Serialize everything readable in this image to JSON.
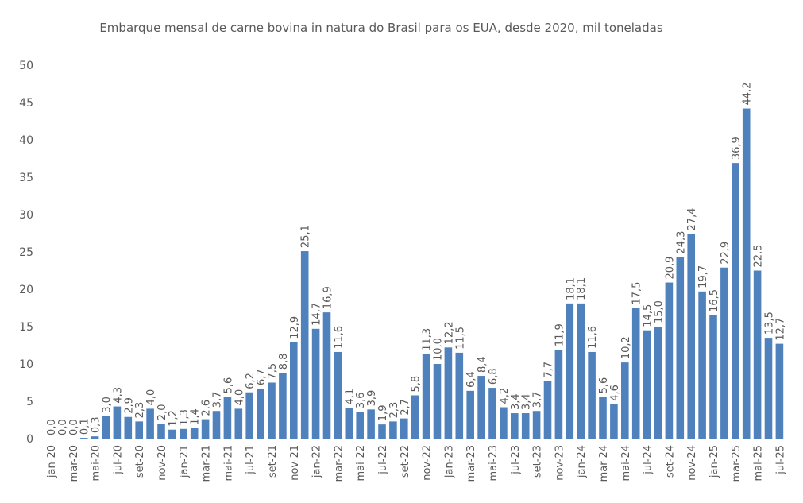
{
  "chart_data": {
    "type": "bar",
    "title": "Embarque mensal de carne bovina in natura do Brasil para os EUA, desde 2020, mil toneladas",
    "xlabel": "",
    "ylabel": "",
    "ylim": [
      0,
      50
    ],
    "y_ticks": [
      0,
      5,
      10,
      15,
      20,
      25,
      30,
      35,
      40,
      45,
      50
    ],
    "x_tick_labels": [
      "jan-20",
      "mar-20",
      "mai-20",
      "jul-20",
      "set-20",
      "nov-20",
      "jan-21",
      "mar-21",
      "mai-21",
      "jul-21",
      "set-21",
      "nov-21",
      "jan-22",
      "mar-22",
      "mai-22",
      "jul-22",
      "set-22",
      "nov-22",
      "jan-23",
      "mar-23",
      "mai-23",
      "jul-23",
      "set-23",
      "nov-23",
      "jan-24",
      "mar-24",
      "mai-24",
      "jul-24",
      "set-24",
      "nov-24",
      "jan-25",
      "mar-25",
      "mai-25",
      "jul-25"
    ],
    "x_range": [
      "jan-20",
      "jul-25"
    ],
    "frequency": "monthly",
    "values": [
      0.0,
      0.0,
      0.0,
      0.1,
      0.3,
      3.0,
      4.3,
      2.9,
      2.3,
      4.0,
      2.0,
      1.2,
      1.3,
      1.4,
      2.6,
      3.7,
      5.6,
      4.0,
      6.2,
      6.7,
      7.5,
      8.8,
      12.9,
      25.1,
      14.7,
      16.9,
      11.6,
      4.1,
      3.6,
      3.9,
      1.9,
      2.3,
      2.7,
      5.8,
      11.3,
      10.0,
      12.2,
      11.5,
      6.4,
      8.4,
      6.8,
      4.2,
      3.4,
      3.4,
      3.7,
      7.7,
      11.9,
      18.1,
      18.1,
      11.6,
      5.6,
      4.6,
      10.2,
      17.5,
      14.5,
      15.0,
      20.9,
      24.3,
      27.4,
      19.7,
      16.5,
      22.9,
      36.9,
      44.2,
      22.5,
      13.5,
      12.7
    ],
    "data_labels": true,
    "decimal_separator": ",",
    "grid": false,
    "legend": "none",
    "bar_color": "#4F81BD"
  }
}
